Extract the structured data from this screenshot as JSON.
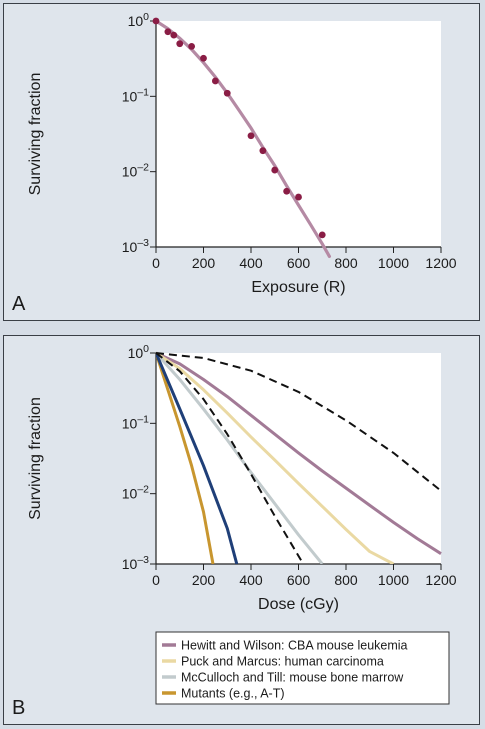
{
  "chart_data": [
    {
      "panel_letter": "A",
      "type": "scatter",
      "xlabel": "Exposure (R)",
      "ylabel": "Surviving fraction",
      "xlim": [
        0,
        1200
      ],
      "ylim": [
        0.001,
        1
      ],
      "y_scale": "log",
      "grid": false,
      "xticks": [
        "0",
        "200",
        "400",
        "600",
        "800",
        "1000",
        "1200"
      ],
      "yticks": [
        {
          "value": 1,
          "base": "10",
          "exp": "0"
        },
        {
          "value": 0.1,
          "base": "10",
          "exp": "–1"
        },
        {
          "value": 0.01,
          "base": "10",
          "exp": "–2"
        },
        {
          "value": 0.001,
          "base": "10",
          "exp": "–3"
        }
      ],
      "colors": {
        "points": "#8a1d45",
        "fit": "#b58aa4"
      },
      "points": [
        {
          "x": 0,
          "y": 1.0
        },
        {
          "x": 50,
          "y": 0.72
        },
        {
          "x": 75,
          "y": 0.65
        },
        {
          "x": 100,
          "y": 0.5
        },
        {
          "x": 150,
          "y": 0.46
        },
        {
          "x": 200,
          "y": 0.32
        },
        {
          "x": 250,
          "y": 0.16
        },
        {
          "x": 300,
          "y": 0.11
        },
        {
          "x": 400,
          "y": 0.03
        },
        {
          "x": 450,
          "y": 0.019
        },
        {
          "x": 500,
          "y": 0.0105
        },
        {
          "x": 550,
          "y": 0.0055
        },
        {
          "x": 600,
          "y": 0.0046
        },
        {
          "x": 700,
          "y": 0.00145
        }
      ],
      "fit_curve": {
        "x": [
          0,
          50,
          100,
          150,
          200,
          250,
          300,
          350,
          400,
          450,
          500,
          550,
          600,
          650,
          700,
          730
        ],
        "y": [
          1.0,
          0.79,
          0.59,
          0.42,
          0.28,
          0.18,
          0.11,
          0.065,
          0.038,
          0.021,
          0.012,
          0.0065,
          0.0036,
          0.002,
          0.0011,
          0.00075
        ]
      }
    },
    {
      "panel_letter": "B",
      "type": "line",
      "xlabel": "Dose (cGy)",
      "ylabel": "Surviving fraction",
      "xlim": [
        0,
        1200
      ],
      "ylim": [
        0.001,
        1
      ],
      "y_scale": "log",
      "grid": false,
      "xticks": [
        "0",
        "200",
        "400",
        "600",
        "800",
        "1000",
        "1200"
      ],
      "yticks": [
        {
          "value": 1,
          "base": "10",
          "exp": "0"
        },
        {
          "value": 0.1,
          "base": "10",
          "exp": "–1"
        },
        {
          "value": 0.01,
          "base": "10",
          "exp": "–2"
        },
        {
          "value": 0.001,
          "base": "10",
          "exp": "–3"
        }
      ],
      "legend_position": "bottom",
      "series": [
        {
          "name": "Hewitt and Wilson: CBA mouse leukemia",
          "color": "#a27a96",
          "style": "solid",
          "in_legend": true,
          "x": [
            0,
            100,
            200,
            300,
            400,
            500,
            600,
            700,
            800,
            900,
            1000,
            1100,
            1200
          ],
          "y": [
            1.0,
            0.7,
            0.42,
            0.24,
            0.13,
            0.07,
            0.038,
            0.021,
            0.012,
            0.0068,
            0.0039,
            0.0023,
            0.0014
          ]
        },
        {
          "name": "Puck and Marcus: human carcinoma",
          "color": "#ead9a3",
          "style": "solid",
          "in_legend": true,
          "x": [
            0,
            100,
            200,
            300,
            400,
            500,
            600,
            700,
            800,
            900,
            1000
          ],
          "y": [
            1.0,
            0.6,
            0.3,
            0.14,
            0.064,
            0.03,
            0.014,
            0.0066,
            0.0031,
            0.0015,
            0.001
          ]
        },
        {
          "name": "McCulloch and Till: mouse bone marrow",
          "color": "#c2cbcd",
          "style": "solid",
          "in_legend": true,
          "x": [
            0,
            100,
            200,
            300,
            400,
            500,
            600,
            700
          ],
          "y": [
            1.0,
            0.42,
            0.16,
            0.058,
            0.02,
            0.0072,
            0.0026,
            0.001
          ]
        },
        {
          "name": "Mutants (e.g., A-T)",
          "color": "#c8962f",
          "style": "solid",
          "in_legend": true,
          "x": [
            0,
            50,
            100,
            150,
            200,
            240
          ],
          "y": [
            1.0,
            0.3,
            0.09,
            0.025,
            0.0055,
            0.001
          ]
        },
        {
          "name": "",
          "color": "#1f3f78",
          "style": "solid",
          "in_legend": false,
          "x": [
            0,
            100,
            200,
            300,
            340
          ],
          "y": [
            1.0,
            0.16,
            0.025,
            0.0032,
            0.001
          ]
        },
        {
          "name": "",
          "color": "#111111",
          "style": "dashed",
          "in_legend": false,
          "x": [
            0,
            100,
            200,
            300,
            400,
            500,
            620
          ],
          "y": [
            1.0,
            0.55,
            0.22,
            0.07,
            0.019,
            0.0048,
            0.001
          ]
        },
        {
          "name": "",
          "color": "#111111",
          "style": "dashed",
          "in_legend": false,
          "x": [
            0,
            200,
            400,
            600,
            800,
            1000,
            1200
          ],
          "y": [
            1.0,
            0.85,
            0.56,
            0.28,
            0.11,
            0.038,
            0.011
          ]
        }
      ]
    }
  ]
}
